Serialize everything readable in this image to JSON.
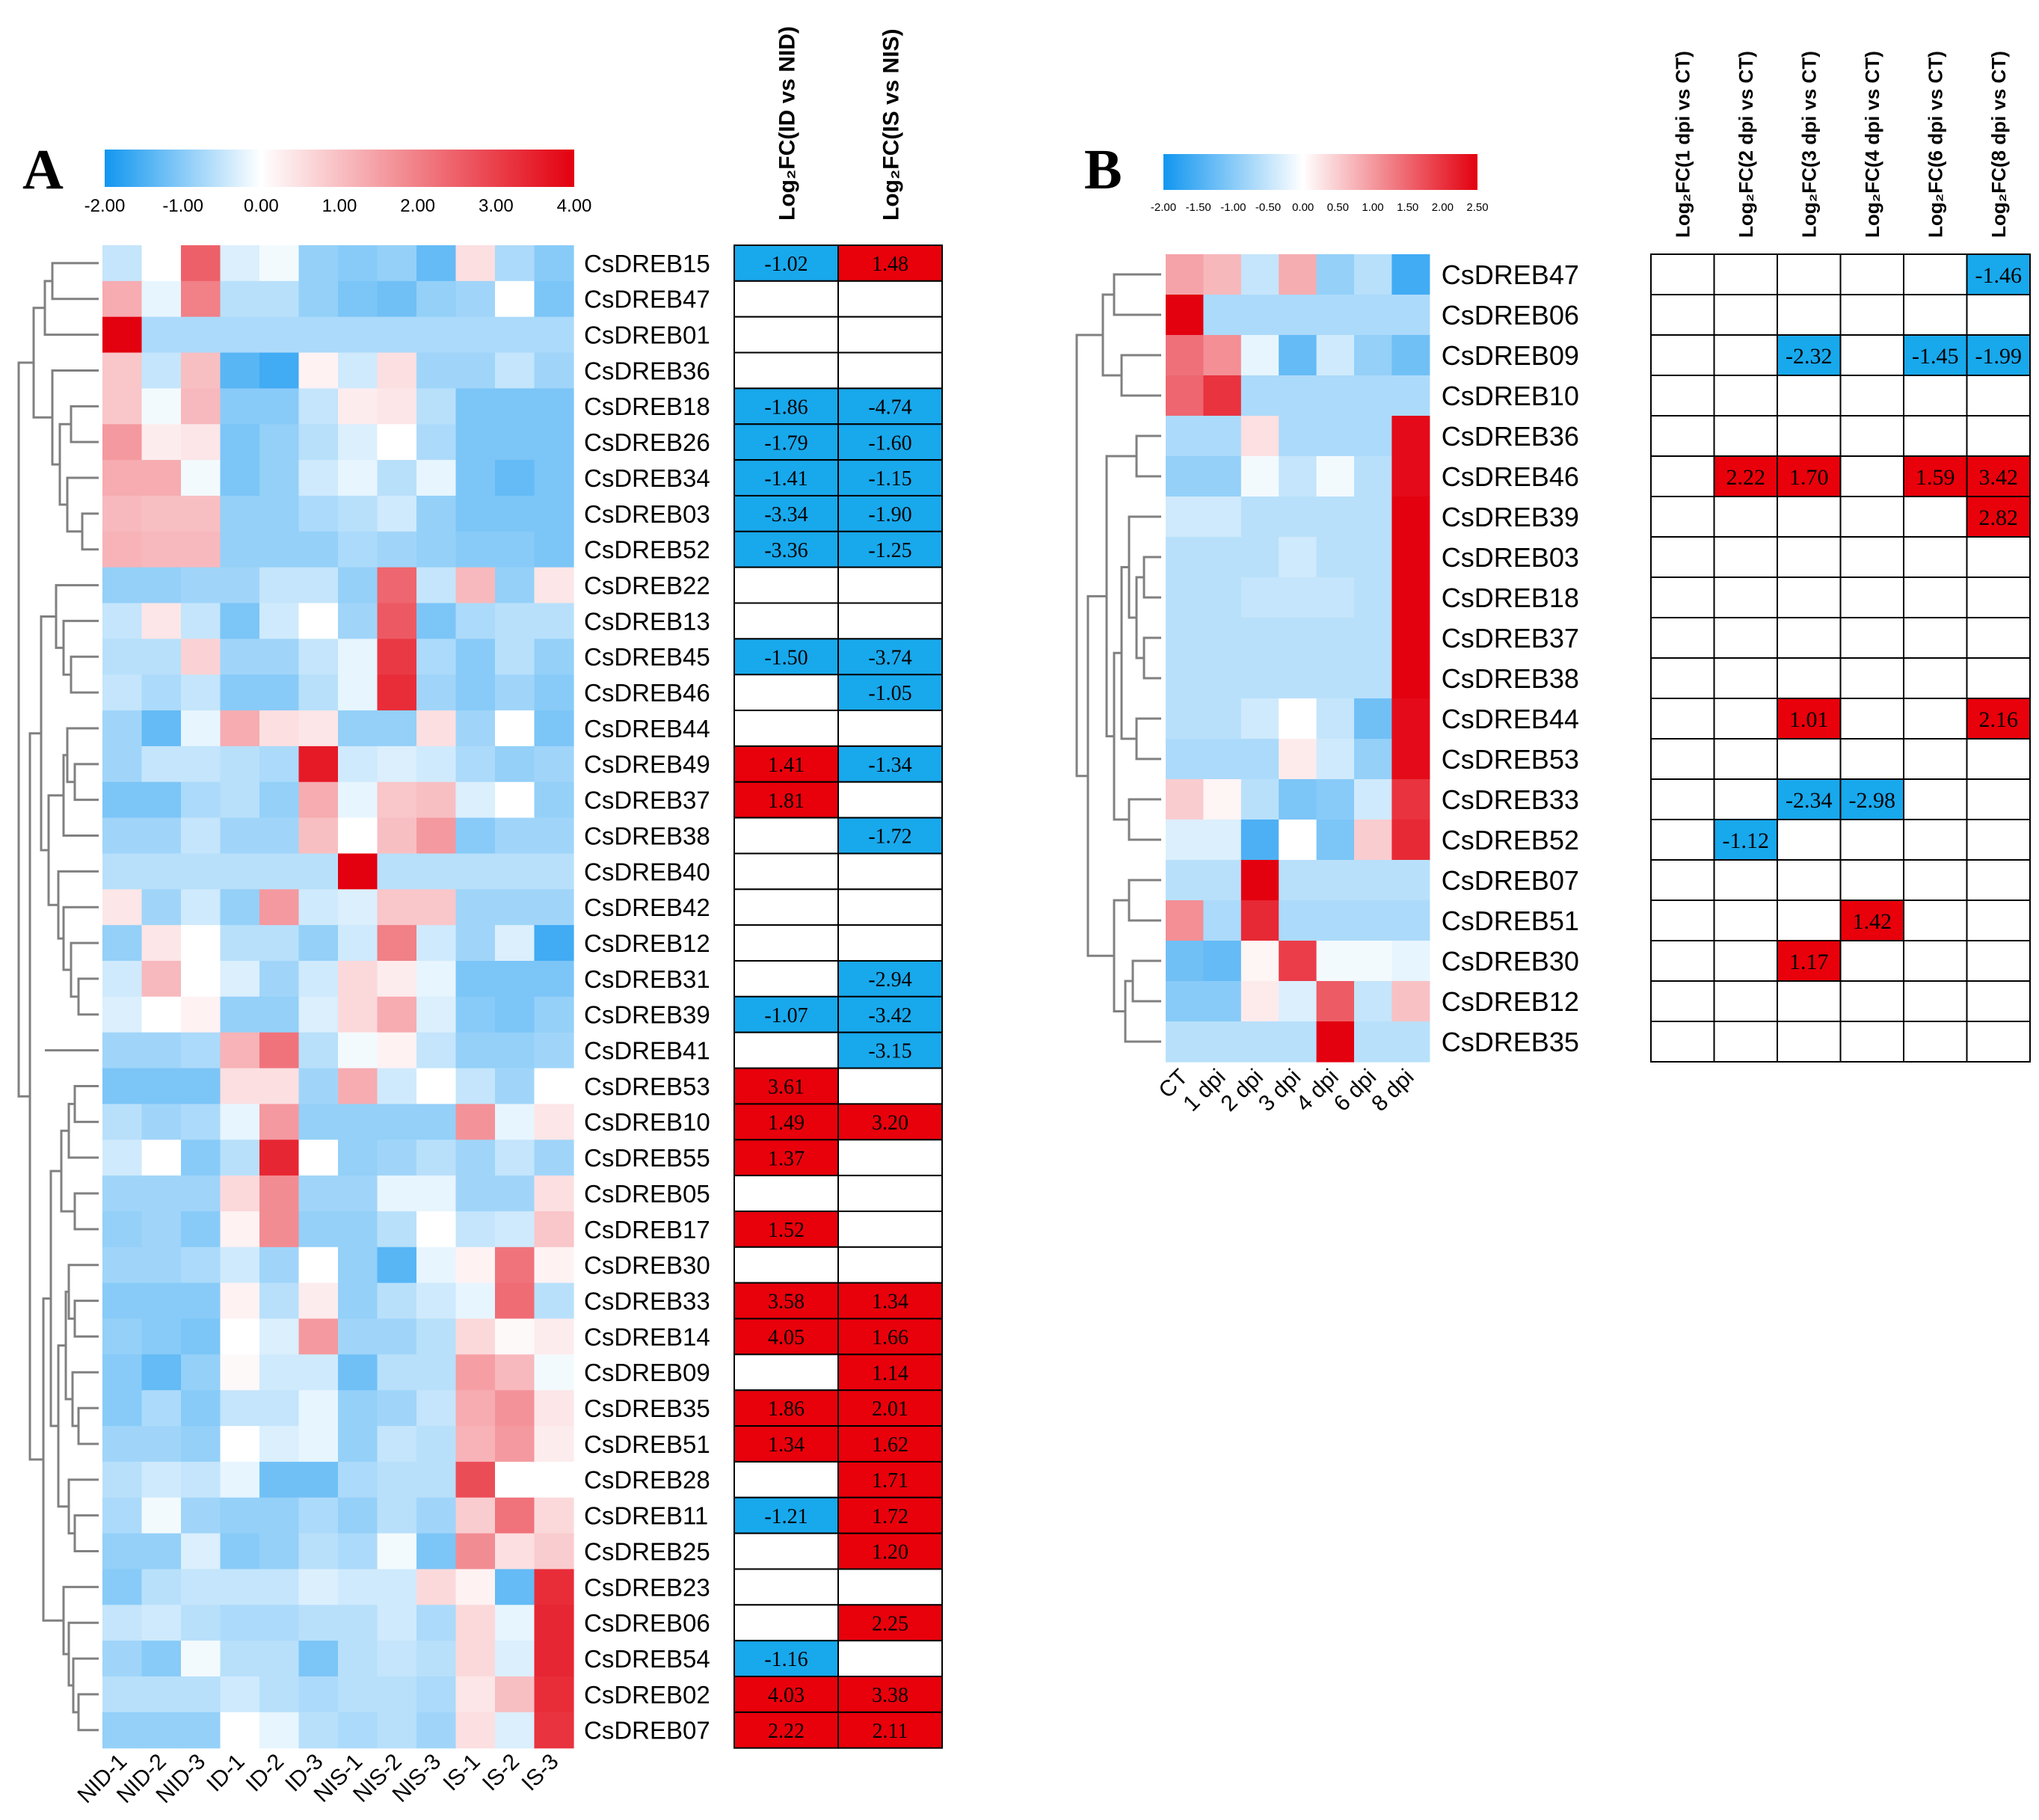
{
  "figure": {
    "panel_a_label": "A",
    "panel_b_label": "B"
  },
  "colors": {
    "blue": "#1196F0",
    "white": "#FFFFFF",
    "red": "#E3000F",
    "cell_blue": "#18A8EC",
    "cell_red": "#E8000B"
  },
  "chart_data": [
    {
      "type": "heatmap",
      "panel": "A",
      "title": "",
      "colorbar": {
        "min": -2,
        "max": 4,
        "ticks": [
          "-2.00",
          "-1.00",
          "0.00",
          "1.00",
          "2.00",
          "3.00",
          "4.00"
        ]
      },
      "columns": [
        "NID-1",
        "NID-2",
        "NID-3",
        "ID-1",
        "ID-2",
        "ID-3",
        "NIS-1",
        "NIS-2",
        "NIS-3",
        "IS-1",
        "IS-2",
        "IS-3"
      ],
      "rows": [
        "CsDREB15",
        "CsDREB47",
        "CsDREB01",
        "CsDREB36",
        "CsDREB18",
        "CsDREB26",
        "CsDREB34",
        "CsDREB03",
        "CsDREB52",
        "CsDREB22",
        "CsDREB13",
        "CsDREB45",
        "CsDREB46",
        "CsDREB44",
        "CsDREB49",
        "CsDREB37",
        "CsDREB38",
        "CsDREB40",
        "CsDREB42",
        "CsDREB12",
        "CsDREB31",
        "CsDREB39",
        "CsDREB41",
        "CsDREB53",
        "CsDREB10",
        "CsDREB55",
        "CsDREB05",
        "CsDREB17",
        "CsDREB30",
        "CsDREB33",
        "CsDREB14",
        "CsDREB09",
        "CsDREB35",
        "CsDREB51",
        "CsDREB28",
        "CsDREB11",
        "CsDREB25",
        "CsDREB23",
        "CsDREB06",
        "CsDREB54",
        "CsDREB02",
        "CsDREB07"
      ],
      "values": [
        [
          -0.5,
          0,
          2.5,
          -0.3,
          -0.1,
          -0.9,
          -1.0,
          -0.9,
          -1.3,
          0.5,
          -0.7,
          -1.0
        ],
        [
          1.3,
          -0.2,
          2.0,
          -0.6,
          -0.6,
          -0.9,
          -1.1,
          -1.2,
          -0.9,
          -0.8,
          0,
          -1.1
        ],
        [
          4.0,
          -0.7,
          -0.7,
          -0.7,
          -0.7,
          -0.7,
          -0.7,
          -0.7,
          -0.7,
          -0.7,
          -0.7,
          -0.7
        ],
        [
          0.9,
          -0.5,
          1.0,
          -1.4,
          -1.6,
          0.2,
          -0.4,
          0.5,
          -0.8,
          -0.8,
          -0.5,
          -0.8
        ],
        [
          0.9,
          -0.1,
          1.1,
          -1.0,
          -1.0,
          -0.5,
          0.3,
          0.4,
          -0.6,
          -1.1,
          -1.1,
          -1.1
        ],
        [
          1.6,
          0.3,
          0.4,
          -1.1,
          -0.9,
          -0.6,
          -0.3,
          0,
          -0.7,
          -1.1,
          -1.1,
          -1.1
        ],
        [
          1.3,
          1.3,
          -0.1,
          -1.1,
          -0.9,
          -0.4,
          -0.2,
          -0.6,
          -0.2,
          -1.1,
          -1.3,
          -1.1
        ],
        [
          1.1,
          1.0,
          1.0,
          -0.9,
          -0.9,
          -0.7,
          -0.6,
          -0.4,
          -0.9,
          -1.1,
          -1.1,
          -1.1
        ],
        [
          1.2,
          1.1,
          1.1,
          -0.9,
          -0.9,
          -0.9,
          -0.7,
          -0.8,
          -0.9,
          -1.0,
          -1.0,
          -1.1
        ],
        [
          -0.9,
          -0.9,
          -0.8,
          -0.8,
          -0.5,
          -0.5,
          -0.9,
          2.4,
          -0.5,
          1.1,
          -0.9,
          0.4
        ],
        [
          -0.5,
          0.4,
          -0.5,
          -1.1,
          -0.4,
          0,
          -0.8,
          2.6,
          -1.1,
          -0.7,
          -0.6,
          -0.6
        ],
        [
          -0.6,
          -0.6,
          0.7,
          -0.8,
          -0.8,
          -0.5,
          -0.2,
          3.1,
          -0.7,
          -1.0,
          -0.6,
          -0.9
        ],
        [
          -0.5,
          -0.7,
          -0.5,
          -1.0,
          -1.0,
          -0.6,
          -0.2,
          3.3,
          -0.8,
          -1.0,
          -0.8,
          -1.0
        ],
        [
          -0.8,
          -1.3,
          -0.2,
          1.3,
          0.5,
          0.4,
          -0.9,
          -0.9,
          0.5,
          -0.8,
          0,
          -1.1
        ],
        [
          -0.8,
          -0.5,
          -0.5,
          -0.6,
          -0.7,
          3.6,
          -0.4,
          -0.3,
          -0.4,
          -0.7,
          -0.9,
          -0.8
        ],
        [
          -1.1,
          -1.1,
          -0.7,
          -0.6,
          -0.9,
          1.3,
          -0.2,
          0.9,
          1.0,
          -0.3,
          0,
          -0.9
        ],
        [
          -0.8,
          -0.8,
          -0.5,
          -0.8,
          -0.8,
          1.0,
          0,
          1.0,
          1.6,
          -1.0,
          -0.8,
          -0.8
        ],
        [
          -0.6,
          -0.6,
          -0.6,
          -0.6,
          -0.6,
          -0.6,
          4.0,
          -0.6,
          -0.6,
          -0.6,
          -0.6,
          -0.6
        ],
        [
          0.4,
          -0.8,
          -0.4,
          -0.9,
          1.6,
          -0.4,
          -0.3,
          0.9,
          0.9,
          -0.8,
          -0.8,
          -0.8
        ],
        [
          -0.9,
          0.4,
          0,
          -0.6,
          -0.6,
          -0.9,
          -0.4,
          2.0,
          -0.4,
          -0.8,
          -0.3,
          -1.6
        ],
        [
          -0.4,
          1.1,
          0,
          -0.3,
          -0.8,
          -0.4,
          0.6,
          0.3,
          -0.2,
          -1.1,
          -1.1,
          -1.1
        ],
        [
          -0.3,
          0,
          0.2,
          -0.9,
          -0.9,
          -0.3,
          0.6,
          1.3,
          -0.3,
          -1.0,
          -1.1,
          -0.9
        ],
        [
          -0.8,
          -0.8,
          -0.7,
          1.2,
          2.2,
          -0.6,
          -0.1,
          0.2,
          -0.5,
          -0.9,
          -0.9,
          -0.8
        ],
        [
          -1.1,
          -1.1,
          -1.1,
          0.5,
          0.5,
          -0.8,
          1.3,
          -0.4,
          0,
          -0.5,
          -0.8,
          0
        ],
        [
          -0.6,
          -0.8,
          -0.7,
          -0.2,
          1.6,
          -0.9,
          -0.9,
          -0.9,
          -0.9,
          1.7,
          -0.2,
          0.4
        ],
        [
          -0.4,
          0,
          -1.0,
          -0.6,
          3.4,
          0,
          -0.9,
          -0.8,
          -0.6,
          -0.8,
          -0.5,
          -0.8
        ],
        [
          -0.8,
          -0.8,
          -0.8,
          0.6,
          1.8,
          -0.8,
          -0.8,
          -0.2,
          -0.2,
          -0.8,
          -0.8,
          0.5
        ],
        [
          -0.9,
          -0.8,
          -1.0,
          0.2,
          1.8,
          -0.9,
          -0.9,
          -0.6,
          0,
          -0.5,
          -0.4,
          0.9
        ],
        [
          -0.8,
          -0.8,
          -0.7,
          -0.4,
          -0.8,
          0,
          -0.9,
          -1.4,
          -0.2,
          0.2,
          2.2,
          0.2
        ],
        [
          -1.0,
          -1.0,
          -1.0,
          0.2,
          -0.6,
          0.3,
          -0.9,
          -0.6,
          -0.4,
          -0.2,
          2.3,
          -0.6
        ],
        [
          -0.9,
          -1.0,
          -1.1,
          0,
          -0.3,
          1.6,
          -0.8,
          -0.8,
          -0.6,
          0.6,
          0.1,
          0.3
        ],
        [
          -1.0,
          -1.3,
          -0.9,
          0.1,
          -0.4,
          -0.4,
          -1.2,
          -0.6,
          -0.6,
          1.5,
          1.1,
          -0.1
        ],
        [
          -1.0,
          -0.7,
          -1.0,
          -0.5,
          -0.5,
          -0.2,
          -0.9,
          -0.8,
          -0.5,
          1.3,
          1.7,
          0.4
        ],
        [
          -0.8,
          -0.8,
          -0.9,
          0,
          -0.3,
          -0.2,
          -0.9,
          -0.5,
          -0.6,
          1.2,
          1.6,
          0.3
        ],
        [
          -0.6,
          -0.4,
          -0.5,
          -0.2,
          -1.2,
          -1.2,
          -0.7,
          -0.6,
          -0.6,
          2.8,
          0,
          0
        ],
        [
          -0.7,
          -0.1,
          -0.8,
          -0.9,
          -0.9,
          -0.7,
          -0.9,
          -0.6,
          -0.8,
          0.8,
          2.2,
          0.6
        ],
        [
          -0.9,
          -0.9,
          -0.3,
          -1.0,
          -0.9,
          -0.6,
          -0.7,
          -0.1,
          -1.1,
          1.8,
          0.5,
          0.8
        ],
        [
          -1.0,
          -0.6,
          -0.5,
          -0.5,
          -0.5,
          -0.3,
          -0.4,
          -0.4,
          0.6,
          0.2,
          -1.3,
          3.3
        ],
        [
          -0.5,
          -0.4,
          -0.6,
          -0.7,
          -0.7,
          -0.6,
          -0.6,
          -0.4,
          -0.7,
          0.6,
          -0.2,
          3.4
        ],
        [
          -0.8,
          -1.0,
          -0.1,
          -0.6,
          -0.6,
          -1.1,
          -0.6,
          -0.5,
          -0.6,
          0.6,
          -0.3,
          3.4
        ],
        [
          -0.6,
          -0.6,
          -0.6,
          -0.4,
          -0.6,
          -0.7,
          -0.6,
          -0.6,
          -0.7,
          0.4,
          1.0,
          3.3
        ],
        [
          -0.9,
          -0.9,
          -0.9,
          0,
          -0.2,
          -0.6,
          -0.7,
          -0.6,
          -0.8,
          0.5,
          -0.3,
          3.2
        ]
      ],
      "fc_headers": [
        "Log₂FC(ID vs NID)",
        "Log₂FC(IS vs NIS)"
      ],
      "fc_values": [
        [
          "-1.02",
          "1.48"
        ],
        [
          "",
          ""
        ],
        [
          "",
          ""
        ],
        [
          "",
          ""
        ],
        [
          "-1.86",
          "-4.74"
        ],
        [
          "-1.79",
          "-1.60"
        ],
        [
          "-1.41",
          "-1.15"
        ],
        [
          "-3.34",
          "-1.90"
        ],
        [
          "-3.36",
          "-1.25"
        ],
        [
          "",
          ""
        ],
        [
          "",
          ""
        ],
        [
          "-1.50",
          "-3.74"
        ],
        [
          "",
          "-1.05"
        ],
        [
          "",
          ""
        ],
        [
          "1.41",
          "-1.34"
        ],
        [
          "1.81",
          ""
        ],
        [
          "",
          "-1.72"
        ],
        [
          "",
          ""
        ],
        [
          "",
          ""
        ],
        [
          "",
          ""
        ],
        [
          "",
          "-2.94"
        ],
        [
          "-1.07",
          "-3.42"
        ],
        [
          "",
          "-3.15"
        ],
        [
          "3.61",
          ""
        ],
        [
          "1.49",
          "3.20"
        ],
        [
          "1.37",
          ""
        ],
        [
          "",
          ""
        ],
        [
          "1.52",
          ""
        ],
        [
          "",
          ""
        ],
        [
          "3.58",
          "1.34"
        ],
        [
          "4.05",
          "1.66"
        ],
        [
          "",
          "1.14"
        ],
        [
          "1.86",
          "2.01"
        ],
        [
          "1.34",
          "1.62"
        ],
        [
          "",
          "1.71"
        ],
        [
          "-1.21",
          "1.72"
        ],
        [
          "",
          "1.20"
        ],
        [
          "",
          ""
        ],
        [
          "",
          "2.25"
        ],
        [
          "-1.16",
          ""
        ],
        [
          "4.03",
          "3.38"
        ],
        [
          "2.22",
          "2.11"
        ]
      ]
    },
    {
      "type": "heatmap",
      "panel": "B",
      "title": "",
      "colorbar": {
        "min": -2,
        "max": 2.5,
        "ticks": [
          "-2.00",
          "-1.50",
          "-1.00",
          "-0.50",
          "0.00",
          "0.50",
          "1.00",
          "1.50",
          "2.00",
          "2.50"
        ]
      },
      "columns": [
        "CT",
        "1 dpi",
        "2 dpi",
        "3 dpi",
        "4 dpi",
        "6 dpi",
        "8 dpi"
      ],
      "rows": [
        "CsDREB47",
        "CsDREB06",
        "CsDREB09",
        "CsDREB10",
        "CsDREB36",
        "CsDREB46",
        "CsDREB39",
        "CsDREB03",
        "CsDREB18",
        "CsDREB37",
        "CsDREB38",
        "CsDREB44",
        "CsDREB53",
        "CsDREB33",
        "CsDREB52",
        "CsDREB07",
        "CsDREB51",
        "CsDREB30",
        "CsDREB12",
        "CsDREB35"
      ],
      "values": [
        [
          0.9,
          0.7,
          -0.5,
          0.8,
          -0.9,
          -0.6,
          -1.6
        ],
        [
          2.5,
          -0.7,
          -0.7,
          -0.7,
          -0.7,
          -0.7,
          -0.7
        ],
        [
          1.4,
          1.1,
          -0.2,
          -1.3,
          -0.4,
          -0.9,
          -1.2
        ],
        [
          1.5,
          2.0,
          -0.7,
          -0.7,
          -0.7,
          -0.7,
          -0.7
        ],
        [
          -0.7,
          -0.7,
          0.3,
          -0.7,
          -0.7,
          -0.7,
          2.4
        ],
        [
          -0.9,
          -0.9,
          -0.1,
          -0.5,
          -0.1,
          -0.6,
          2.4
        ],
        [
          -0.4,
          -0.4,
          -0.6,
          -0.6,
          -0.6,
          -0.6,
          2.5
        ],
        [
          -0.6,
          -0.6,
          -0.6,
          -0.4,
          -0.6,
          -0.6,
          2.5
        ],
        [
          -0.6,
          -0.6,
          -0.5,
          -0.5,
          -0.5,
          -0.6,
          2.5
        ],
        [
          -0.6,
          -0.6,
          -0.6,
          -0.6,
          -0.6,
          -0.6,
          2.5
        ],
        [
          -0.6,
          -0.6,
          -0.6,
          -0.6,
          -0.6,
          -0.6,
          2.5
        ],
        [
          -0.6,
          -0.6,
          -0.4,
          0,
          -0.5,
          -1.2,
          2.4
        ],
        [
          -0.7,
          -0.7,
          -0.7,
          0.2,
          -0.4,
          -0.9,
          2.4
        ],
        [
          0.5,
          0.1,
          -0.6,
          -1.1,
          -1.0,
          -0.4,
          2.0
        ],
        [
          -0.3,
          -0.3,
          -1.5,
          0,
          -1.1,
          0.5,
          2.1
        ],
        [
          -0.6,
          -0.6,
          2.5,
          -0.6,
          -0.6,
          -0.6,
          -0.6
        ],
        [
          1.1,
          -0.7,
          2.1,
          -0.7,
          -0.7,
          -0.7,
          -0.7
        ],
        [
          -1.2,
          -1.3,
          0.1,
          1.9,
          -0.1,
          -0.1,
          -0.2
        ],
        [
          -1.0,
          -1.0,
          0.2,
          -0.3,
          1.6,
          -0.5,
          0.6
        ],
        [
          -0.6,
          -0.6,
          -0.6,
          -0.6,
          2.5,
          -0.6,
          -0.6
        ]
      ],
      "fc_headers": [
        "Log₂FC(1 dpi vs CT)",
        "Log₂FC(2 dpi vs CT)",
        "Log₂FC(3 dpi vs CT)",
        "Log₂FC(4 dpi vs CT)",
        "Log₂FC(6 dpi vs CT)",
        "Log₂FC(8 dpi vs CT)"
      ],
      "fc_values": [
        [
          "",
          "",
          "",
          "",
          "",
          "-1.46"
        ],
        [
          "",
          "",
          "",
          "",
          "",
          ""
        ],
        [
          "",
          "",
          "-2.32",
          "",
          "-1.45",
          "-1.99"
        ],
        [
          "",
          "",
          "",
          "",
          "",
          ""
        ],
        [
          "",
          "",
          "",
          "",
          "",
          ""
        ],
        [
          "",
          "2.22",
          "1.70",
          "",
          "1.59",
          "3.42"
        ],
        [
          "",
          "",
          "",
          "",
          "",
          "2.82"
        ],
        [
          "",
          "",
          "",
          "",
          "",
          ""
        ],
        [
          "",
          "",
          "",
          "",
          "",
          ""
        ],
        [
          "",
          "",
          "",
          "",
          "",
          ""
        ],
        [
          "",
          "",
          "",
          "",
          "",
          ""
        ],
        [
          "",
          "",
          "1.01",
          "",
          "",
          "2.16"
        ],
        [
          "",
          "",
          "",
          "",
          "",
          ""
        ],
        [
          "",
          "",
          "-2.34",
          "-2.98",
          "",
          ""
        ],
        [
          "",
          "-1.12",
          "",
          "",
          "",
          ""
        ],
        [
          "",
          "",
          "",
          "",
          "",
          ""
        ],
        [
          "",
          "",
          "",
          "1.42",
          "",
          ""
        ],
        [
          "",
          "",
          "1.17",
          "",
          "",
          ""
        ],
        [
          "",
          "",
          "",
          "",
          "",
          ""
        ],
        [
          "",
          "",
          "",
          "",
          "",
          ""
        ]
      ]
    }
  ]
}
